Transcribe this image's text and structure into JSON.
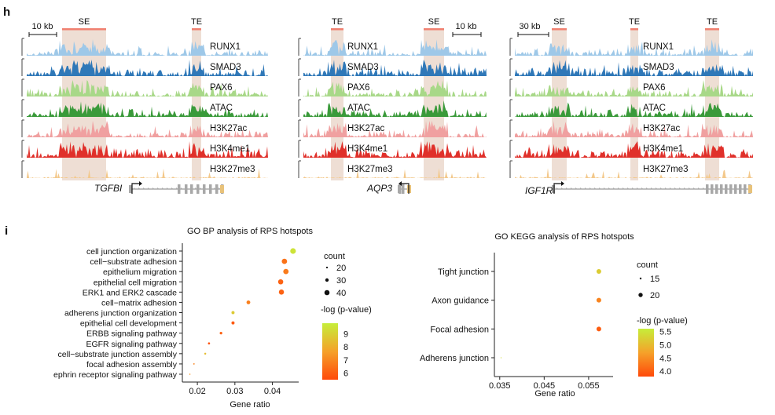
{
  "panel_h": {
    "letter": "h",
    "track_labels": [
      "RUNX1",
      "SMAD3",
      "PAX6",
      "ATAC",
      "H3K27ac",
      "H3K4me1",
      "H3K27me3"
    ],
    "track_colors": [
      "#9ec8e8",
      "#2f78b8",
      "#a8d888",
      "#3a9a3a",
      "#f0a0a0",
      "#e0302a",
      "#f3c88a"
    ],
    "region_color": "#e8d3c6",
    "bar_color": "#f08070",
    "loci": [
      {
        "gene": "TGFBI",
        "scale": "10 kb",
        "regions": [
          {
            "label": "SE"
          },
          {
            "label": "TE"
          }
        ]
      },
      {
        "gene": "AQP3",
        "scale": "10 kb",
        "regions": [
          {
            "label": "TE"
          },
          {
            "label": "SE"
          }
        ]
      },
      {
        "gene": "IGF1R",
        "scale": "30 kb",
        "regions": [
          {
            "label": "SE"
          },
          {
            "label": "TE"
          },
          {
            "label": "TE"
          }
        ]
      }
    ]
  },
  "panel_i": {
    "letter": "i",
    "bp_legend_count_title": "count",
    "bp_legend_pval_title": "-log (p-value)",
    "kegg_legend_count_title": "count",
    "kegg_legend_pval_title": "-log (p-value)"
  },
  "chart_data": [
    {
      "type": "scatter",
      "title": "GO BP analysis of RPS hotspots",
      "xlabel": "Gene ratio",
      "ylabel": "",
      "xlim": [
        0.016,
        0.047
      ],
      "xticks": [
        0.02,
        0.03,
        0.04
      ],
      "xtick_labels": [
        "0.02",
        "0.03",
        "0.04"
      ],
      "categories": [
        "cell junction organization",
        "cell−substrate adhesion",
        "epithelium migration",
        "epithelial cell migration",
        "ERK1 and ERK2 cascade",
        "cell−matrix adhesion",
        "adherens junction organization",
        "epithelial cell development",
        "ERBB signaling pathway",
        "EGFR signaling pathway",
        "cell−substrate junction assembly",
        "focal adhesion assembly",
        "ephrin receptor signaling pathway"
      ],
      "x": [
        0.0455,
        0.0432,
        0.0436,
        0.0422,
        0.0424,
        0.0336,
        0.0295,
        0.0295,
        0.0263,
        0.0231,
        0.0221,
        0.0191,
        0.018
      ],
      "count": [
        43,
        41,
        41,
        40,
        40,
        32,
        28,
        28,
        25,
        22,
        21,
        18,
        17
      ],
      "neg_log_p": [
        9.5,
        6.5,
        6.7,
        6.1,
        6.1,
        6.8,
        8.8,
        5.9,
        6.1,
        5.7,
        8.4,
        6.9,
        7.4
      ],
      "size_legend": {
        "values": [
          20,
          30,
          40
        ],
        "labels": [
          "20",
          "30",
          "40"
        ]
      },
      "color_legend": {
        "min": 5.5,
        "max": 9.8,
        "ticks": [
          6,
          7,
          8,
          9
        ],
        "tick_labels": [
          "6",
          "7",
          "8",
          "9"
        ]
      }
    },
    {
      "type": "scatter",
      "title": "GO KEGG analysis of RPS hotspots",
      "xlabel": "Gene ratio",
      "ylabel": "",
      "xlim": [
        0.0338,
        0.0605
      ],
      "xticks": [
        0.035,
        0.045,
        0.055
      ],
      "xtick_labels": [
        "0.035",
        "0.045",
        "0.055"
      ],
      "categories": [
        "Tight junction",
        "Axon guidance",
        "Focal adhesion",
        "Adherens junction"
      ],
      "x": [
        0.0573,
        0.0573,
        0.0573,
        0.0353
      ],
      "count": [
        21,
        21,
        21,
        13
      ],
      "neg_log_p": [
        5.2,
        4.4,
        4.0,
        5.4
      ],
      "size_legend": {
        "values": [
          15,
          20
        ],
        "labels": [
          "15",
          "20"
        ]
      },
      "color_legend": {
        "min": 3.8,
        "max": 5.6,
        "ticks": [
          4.0,
          4.5,
          5.0,
          5.5
        ],
        "tick_labels": [
          "4.0",
          "4.5",
          "5.0",
          "5.5"
        ]
      }
    }
  ]
}
